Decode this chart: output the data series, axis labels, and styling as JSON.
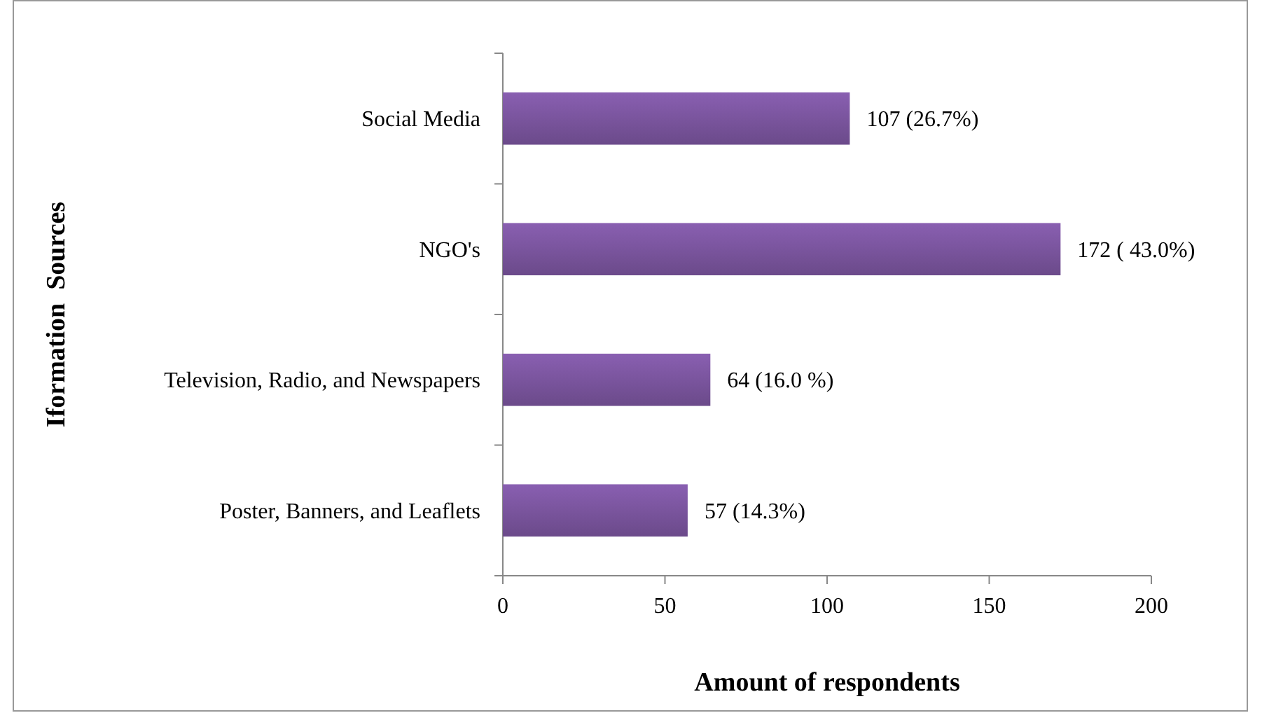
{
  "chart_data": {
    "type": "bar",
    "orientation": "horizontal",
    "categories": [
      "Social Media",
      "NGO's",
      "Television, Radio, and Newspapers",
      "Poster, Banners, and Leaflets"
    ],
    "values": [
      107,
      172,
      64,
      57
    ],
    "value_labels": [
      "107 (26.7%)",
      "172 ( 43.0%)",
      "64 (16.0 %)",
      "57 (14.3%)"
    ],
    "color": "#7b559f",
    "xlim": [
      0,
      200
    ],
    "xticks": [
      0,
      50,
      100,
      150,
      200
    ],
    "xlabel": "Amount of respondents",
    "ylabel": "Iformation  Sources",
    "grid": false
  }
}
